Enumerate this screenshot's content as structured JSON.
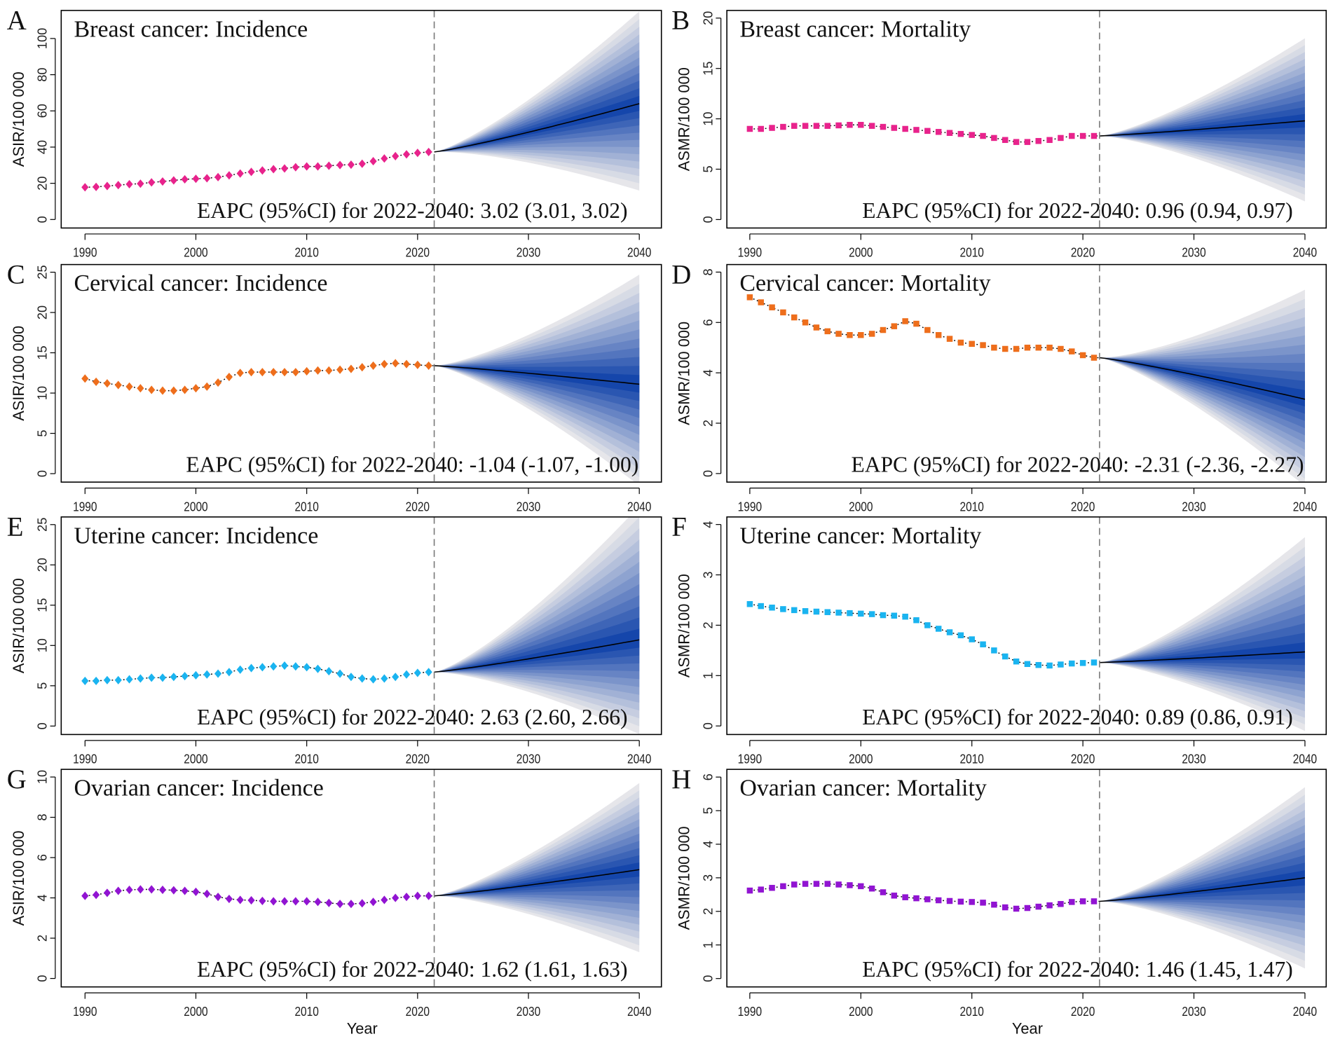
{
  "chart_data": [
    {
      "panel": "A",
      "type": "line",
      "title": "Breast cancer: Incidence",
      "ylabel": "ASIR/100 000",
      "xlabel": "",
      "marker": "diamond",
      "color": "#e8238c",
      "ylim": [
        -4.7,
        115.5
      ],
      "yticks": [
        0,
        20,
        40,
        60,
        80,
        100
      ],
      "xticks": [
        1990,
        2000,
        2010,
        2020,
        2030,
        2040
      ],
      "xlim": [
        1990,
        2040
      ],
      "observed_years": [
        1990,
        2021
      ],
      "observed": [
        17.8,
        18.0,
        18.5,
        19.0,
        19.5,
        19.8,
        20.5,
        21.0,
        21.6,
        22.2,
        22.5,
        22.8,
        23.4,
        24.4,
        25.4,
        26.3,
        27.1,
        27.8,
        28.2,
        28.9,
        29.3,
        29.3,
        29.7,
        30.1,
        30.3,
        30.8,
        32.2,
        33.7,
        35.0,
        36.0,
        36.8,
        37.3
      ],
      "forecast": {
        "start_year": 2021.5,
        "end_year": 2040,
        "start": 37.3,
        "end": 64.0,
        "upper_end": 115,
        "lower_end": 16
      },
      "annotation": "EAPC (95%CI) for 2022-2040: 3.02 (3.01, 3.02)",
      "reference_line_year": 2021.5
    },
    {
      "panel": "B",
      "type": "line",
      "title": "Breast cancer: Mortality",
      "ylabel": "ASMR/100 000",
      "xlabel": "",
      "marker": "square",
      "color": "#e8238c",
      "ylim": [
        -0.84,
        20.76
      ],
      "yticks": [
        0,
        5,
        10,
        15,
        20
      ],
      "xticks": [
        1990,
        2000,
        2010,
        2020,
        2030,
        2040
      ],
      "xlim": [
        1990,
        2040
      ],
      "observed_years": [
        1990,
        2021
      ],
      "observed": [
        9.0,
        9.0,
        9.1,
        9.2,
        9.3,
        9.3,
        9.3,
        9.3,
        9.35,
        9.4,
        9.4,
        9.3,
        9.2,
        9.1,
        9.0,
        8.9,
        8.8,
        8.7,
        8.6,
        8.5,
        8.4,
        8.3,
        8.1,
        7.9,
        7.7,
        7.7,
        7.8,
        7.9,
        8.1,
        8.3,
        8.3,
        8.3
      ],
      "forecast": {
        "start_year": 2021.5,
        "end_year": 2040,
        "start": 8.3,
        "end": 9.8,
        "upper_end": 18.0,
        "lower_end": 1.8
      },
      "annotation": "EAPC (95%CI) for 2022-2040: 0.96 (0.94, 0.97)",
      "reference_line_year": 2021.5
    },
    {
      "panel": "C",
      "type": "line",
      "title": "Cervical cancer: Incidence",
      "ylabel": "ASIR/100 000",
      "xlabel": "",
      "marker": "diamond",
      "color": "#ee6e1c",
      "ylim": [
        -1.05,
        25.95
      ],
      "yticks": [
        0,
        5,
        10,
        15,
        20,
        25
      ],
      "xticks": [
        1990,
        2000,
        2010,
        2020,
        2030,
        2040
      ],
      "xlim": [
        1990,
        2040
      ],
      "observed_years": [
        1990,
        2021
      ],
      "observed": [
        11.8,
        11.4,
        11.2,
        11.0,
        10.8,
        10.6,
        10.4,
        10.3,
        10.3,
        10.4,
        10.6,
        10.8,
        11.3,
        12.0,
        12.5,
        12.6,
        12.6,
        12.6,
        12.6,
        12.6,
        12.7,
        12.8,
        12.8,
        12.9,
        13.0,
        13.2,
        13.4,
        13.6,
        13.7,
        13.6,
        13.5,
        13.4
      ],
      "forecast": {
        "start_year": 2021.5,
        "end_year": 2040,
        "start": 13.4,
        "end": 11.1,
        "upper_end": 24.7,
        "lower_end": -1.5
      },
      "annotation": "EAPC (95%CI) for 2022-2040: -1.04 (-1.07, -1.00)",
      "reference_line_year": 2021.5
    },
    {
      "panel": "D",
      "type": "line",
      "title": "Cervical cancer: Mortality",
      "ylabel": "ASMR/100 000",
      "xlabel": "",
      "marker": "square",
      "color": "#ee6e1c",
      "ylim": [
        -0.34,
        8.3
      ],
      "yticks": [
        0,
        2,
        4,
        6,
        8
      ],
      "xticks": [
        1990,
        2000,
        2010,
        2020,
        2030,
        2040
      ],
      "xlim": [
        1990,
        2040
      ],
      "observed_years": [
        1990,
        2021
      ],
      "observed": [
        7.0,
        6.8,
        6.6,
        6.4,
        6.2,
        6.0,
        5.8,
        5.65,
        5.55,
        5.5,
        5.5,
        5.55,
        5.7,
        5.85,
        6.05,
        5.95,
        5.7,
        5.5,
        5.35,
        5.2,
        5.15,
        5.1,
        5.0,
        4.95,
        4.95,
        5.0,
        5.0,
        5.0,
        4.95,
        4.85,
        4.7,
        4.6
      ],
      "forecast": {
        "start_year": 2021.5,
        "end_year": 2040,
        "start": 4.6,
        "end": 2.95,
        "upper_end": 7.3,
        "lower_end": -0.5
      },
      "annotation": "EAPC (95%CI) for 2022-2040: -2.31 (-2.36, -2.27)",
      "reference_line_year": 2021.5
    },
    {
      "panel": "E",
      "type": "line",
      "title": "Uterine cancer: Incidence",
      "ylabel": "ASIR/100 000",
      "xlabel": "",
      "marker": "diamond",
      "color": "#1ab4f0",
      "ylim": [
        -1.05,
        25.95
      ],
      "yticks": [
        0,
        5,
        10,
        15,
        20,
        25
      ],
      "xticks": [
        1990,
        2000,
        2010,
        2020,
        2030,
        2040
      ],
      "xlim": [
        1990,
        2040
      ],
      "observed_years": [
        1990,
        2021
      ],
      "observed": [
        5.6,
        5.6,
        5.7,
        5.7,
        5.8,
        5.9,
        6.0,
        6.0,
        6.1,
        6.2,
        6.3,
        6.4,
        6.5,
        6.7,
        7.0,
        7.2,
        7.3,
        7.4,
        7.5,
        7.4,
        7.3,
        7.1,
        6.8,
        6.5,
        6.1,
        5.9,
        5.8,
        5.9,
        6.1,
        6.4,
        6.6,
        6.7
      ],
      "forecast": {
        "start_year": 2021.5,
        "end_year": 2040,
        "start": 6.7,
        "end": 10.7,
        "upper_end": 27.3,
        "lower_end": -1.0
      },
      "annotation": "EAPC (95%CI) for 2022-2040: 2.63 (2.60, 2.66)",
      "reference_line_year": 2021.5
    },
    {
      "panel": "F",
      "type": "line",
      "title": "Uterine cancer: Mortality",
      "ylabel": "ASMR/100 000",
      "xlabel": "",
      "marker": "square",
      "color": "#1ab4f0",
      "ylim": [
        -0.17,
        4.15
      ],
      "yticks": [
        0,
        1,
        2,
        3,
        4
      ],
      "xticks": [
        1990,
        2000,
        2010,
        2020,
        2030,
        2040
      ],
      "xlim": [
        1990,
        2040
      ],
      "observed_years": [
        1990,
        2021
      ],
      "observed": [
        2.42,
        2.38,
        2.35,
        2.32,
        2.3,
        2.28,
        2.27,
        2.26,
        2.25,
        2.24,
        2.23,
        2.22,
        2.2,
        2.19,
        2.17,
        2.1,
        2.0,
        1.93,
        1.86,
        1.8,
        1.72,
        1.62,
        1.5,
        1.38,
        1.28,
        1.23,
        1.21,
        1.2,
        1.22,
        1.24,
        1.25,
        1.26
      ],
      "forecast": {
        "start_year": 2021.5,
        "end_year": 2040,
        "start": 1.26,
        "end": 1.47,
        "upper_end": 3.75,
        "lower_end": -0.1
      },
      "annotation": "EAPC (95%CI) for 2022-2040: 0.89 (0.86, 0.91)",
      "reference_line_year": 2021.5
    },
    {
      "panel": "G",
      "type": "line",
      "title": "Ovarian cancer: Incidence",
      "ylabel": "ASIR/100 000",
      "xlabel": "Year",
      "marker": "diamond",
      "color": "#9114d2",
      "ylim": [
        -0.42,
        10.38
      ],
      "yticks": [
        0,
        2,
        4,
        6,
        8,
        10
      ],
      "xticks": [
        1990,
        2000,
        2010,
        2020,
        2030,
        2040
      ],
      "xlim": [
        1990,
        2040
      ],
      "observed_years": [
        1990,
        2021
      ],
      "observed": [
        4.1,
        4.15,
        4.25,
        4.35,
        4.4,
        4.42,
        4.42,
        4.4,
        4.38,
        4.35,
        4.3,
        4.2,
        4.05,
        3.95,
        3.9,
        3.88,
        3.85,
        3.83,
        3.83,
        3.83,
        3.83,
        3.8,
        3.75,
        3.7,
        3.7,
        3.73,
        3.8,
        3.9,
        4.0,
        4.05,
        4.1,
        4.1
      ],
      "forecast": {
        "start_year": 2021.5,
        "end_year": 2040,
        "start": 4.1,
        "end": 5.4,
        "upper_end": 9.7,
        "lower_end": 1.3
      },
      "annotation": "EAPC (95%CI) for 2022-2040: 1.62 (1.61, 1.63)",
      "reference_line_year": 2021.5
    },
    {
      "panel": "H",
      "type": "line",
      "title": "Ovarian cancer: Mortality",
      "ylabel": "ASMR/100 000",
      "xlabel": "Year",
      "marker": "square",
      "color": "#9114d2",
      "ylim": [
        -0.25,
        6.23
      ],
      "yticks": [
        0,
        1,
        2,
        3,
        4,
        5,
        6
      ],
      "xticks": [
        1990,
        2000,
        2010,
        2020,
        2030,
        2040
      ],
      "xlim": [
        1990,
        2040
      ],
      "observed_years": [
        1990,
        2021
      ],
      "observed": [
        2.62,
        2.65,
        2.7,
        2.75,
        2.8,
        2.82,
        2.82,
        2.82,
        2.8,
        2.78,
        2.75,
        2.68,
        2.57,
        2.47,
        2.42,
        2.39,
        2.36,
        2.33,
        2.31,
        2.29,
        2.28,
        2.26,
        2.2,
        2.12,
        2.08,
        2.1,
        2.14,
        2.18,
        2.22,
        2.28,
        2.3,
        2.3
      ],
      "forecast": {
        "start_year": 2021.5,
        "end_year": 2040,
        "start": 2.3,
        "end": 3.0,
        "upper_end": 5.7,
        "lower_end": 0.3
      },
      "annotation": "EAPC (95%CI) for 2022-2040: 1.46 (1.45, 1.47)",
      "reference_line_year": 2021.5
    }
  ],
  "fan_colors": {
    "outer": "#e6e6ea",
    "inner": "#0b3ea8"
  }
}
